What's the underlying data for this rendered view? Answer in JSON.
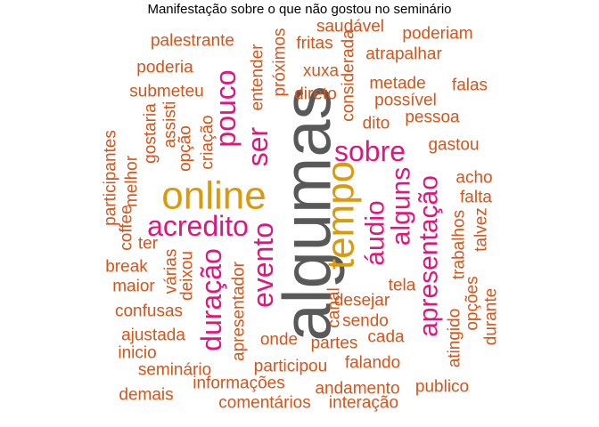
{
  "chart_data": {
    "type": "wordcloud",
    "title": "Manifestação sobre o que não gostou no seminário",
    "colors": {
      "top": "#595959",
      "second": "#D99A0B",
      "third": "#E0167E",
      "rest": "#D5541A"
    },
    "words": [
      {
        "text": "algumas",
        "freq": 10,
        "color": "#595959",
        "rot": -90
      },
      {
        "text": "tempo",
        "freq": 6,
        "color": "#D99A0B",
        "rot": -90
      },
      {
        "text": "online",
        "freq": 6,
        "color": "#D99A0B",
        "rot": 0
      },
      {
        "text": "acredito",
        "freq": 4,
        "color": "#E0167E",
        "rot": 0
      },
      {
        "text": "sobre",
        "freq": 4,
        "color": "#E0167E",
        "rot": 0
      },
      {
        "text": "apresentação",
        "freq": 4,
        "color": "#E0167E",
        "rot": -90
      },
      {
        "text": "duração",
        "freq": 4,
        "color": "#E0167E",
        "rot": -90
      },
      {
        "text": "evento",
        "freq": 4,
        "color": "#E0167E",
        "rot": -90
      },
      {
        "text": "áudio",
        "freq": 4,
        "color": "#E0167E",
        "rot": -90
      },
      {
        "text": "alguns",
        "freq": 4,
        "color": "#E0167E",
        "rot": -90
      },
      {
        "text": "ser",
        "freq": 4,
        "color": "#E0167E",
        "rot": -90
      },
      {
        "text": "pouco",
        "freq": 4,
        "color": "#E0167E",
        "rot": -90
      },
      {
        "text": "palestrante",
        "freq": 2,
        "color": "#D5541A",
        "rot": 0
      },
      {
        "text": "saudável",
        "freq": 2,
        "color": "#D5541A",
        "rot": 0
      },
      {
        "text": "fritas",
        "freq": 2,
        "color": "#D5541A",
        "rot": 0
      },
      {
        "text": "poderiam",
        "freq": 2,
        "color": "#D5541A",
        "rot": 0
      },
      {
        "text": "atrapalhar",
        "freq": 2,
        "color": "#D5541A",
        "rot": 0
      },
      {
        "text": "poderia",
        "freq": 2,
        "color": "#D5541A",
        "rot": 0
      },
      {
        "text": "xuxa",
        "freq": 2,
        "color": "#D5541A",
        "rot": 0
      },
      {
        "text": "metade",
        "freq": 2,
        "color": "#D5541A",
        "rot": 0
      },
      {
        "text": "falas",
        "freq": 2,
        "color": "#D5541A",
        "rot": 0
      },
      {
        "text": "submeteu",
        "freq": 2,
        "color": "#D5541A",
        "rot": 0
      },
      {
        "text": "direto",
        "freq": 2,
        "color": "#D5541A",
        "rot": 0
      },
      {
        "text": "possível",
        "freq": 2,
        "color": "#D5541A",
        "rot": 0
      },
      {
        "text": "pessoa",
        "freq": 2,
        "color": "#D5541A",
        "rot": 0
      },
      {
        "text": "dito",
        "freq": 2,
        "color": "#D5541A",
        "rot": 0
      },
      {
        "text": "gastou",
        "freq": 2,
        "color": "#D5541A",
        "rot": 0
      },
      {
        "text": "acho",
        "freq": 2,
        "color": "#D5541A",
        "rot": 0
      },
      {
        "text": "falta",
        "freq": 2,
        "color": "#D5541A",
        "rot": 0
      },
      {
        "text": "ter",
        "freq": 2,
        "color": "#D5541A",
        "rot": 0
      },
      {
        "text": "break",
        "freq": 2,
        "color": "#D5541A",
        "rot": 0
      },
      {
        "text": "maior",
        "freq": 2,
        "color": "#D5541A",
        "rot": 0
      },
      {
        "text": "tela",
        "freq": 2,
        "color": "#D5541A",
        "rot": 0
      },
      {
        "text": "desejar",
        "freq": 2,
        "color": "#D5541A",
        "rot": 0
      },
      {
        "text": "confusas",
        "freq": 2,
        "color": "#D5541A",
        "rot": 0
      },
      {
        "text": "sendo",
        "freq": 2,
        "color": "#D5541A",
        "rot": 0
      },
      {
        "text": "onde",
        "freq": 2,
        "color": "#D5541A",
        "rot": 0
      },
      {
        "text": "ajustada",
        "freq": 2,
        "color": "#D5541A",
        "rot": 0
      },
      {
        "text": "partes",
        "freq": 2,
        "color": "#D5541A",
        "rot": 0
      },
      {
        "text": "cada",
        "freq": 2,
        "color": "#D5541A",
        "rot": 0
      },
      {
        "text": "inicio",
        "freq": 2,
        "color": "#D5541A",
        "rot": 0
      },
      {
        "text": "seminário",
        "freq": 2,
        "color": "#D5541A",
        "rot": 0
      },
      {
        "text": "participou",
        "freq": 2,
        "color": "#D5541A",
        "rot": 0
      },
      {
        "text": "falando",
        "freq": 2,
        "color": "#D5541A",
        "rot": 0
      },
      {
        "text": "informações",
        "freq": 2,
        "color": "#D5541A",
        "rot": 0
      },
      {
        "text": "demais",
        "freq": 2,
        "color": "#D5541A",
        "rot": 0
      },
      {
        "text": "andamento",
        "freq": 2,
        "color": "#D5541A",
        "rot": 0
      },
      {
        "text": "publico",
        "freq": 2,
        "color": "#D5541A",
        "rot": 0
      },
      {
        "text": "comentários",
        "freq": 2,
        "color": "#D5541A",
        "rot": 0
      },
      {
        "text": "interação",
        "freq": 2,
        "color": "#D5541A",
        "rot": 0
      },
      {
        "text": "entender",
        "freq": 2,
        "color": "#D5541A",
        "rot": -90
      },
      {
        "text": "próximos",
        "freq": 2,
        "color": "#D5541A",
        "rot": -90
      },
      {
        "text": "considerada",
        "freq": 2,
        "color": "#D5541A",
        "rot": -90
      },
      {
        "text": "participantes",
        "freq": 2,
        "color": "#D5541A",
        "rot": -90
      },
      {
        "text": "gostaria",
        "freq": 2,
        "color": "#D5541A",
        "rot": -90
      },
      {
        "text": "assisti",
        "freq": 2,
        "color": "#D5541A",
        "rot": -90
      },
      {
        "text": "opção",
        "freq": 2,
        "color": "#D5541A",
        "rot": -90
      },
      {
        "text": "criação",
        "freq": 2,
        "color": "#D5541A",
        "rot": -90
      },
      {
        "text": "melhor",
        "freq": 2,
        "color": "#D5541A",
        "rot": -90
      },
      {
        "text": "coffee",
        "freq": 2,
        "color": "#D5541A",
        "rot": -90
      },
      {
        "text": "trabalhos",
        "freq": 2,
        "color": "#D5541A",
        "rot": -90
      },
      {
        "text": "talvez",
        "freq": 2,
        "color": "#D5541A",
        "rot": -90
      },
      {
        "text": "várias",
        "freq": 2,
        "color": "#D5541A",
        "rot": -90
      },
      {
        "text": "deixou",
        "freq": 2,
        "color": "#D5541A",
        "rot": -90
      },
      {
        "text": "apresentador",
        "freq": 2,
        "color": "#D5541A",
        "rot": -90
      },
      {
        "text": "canal",
        "freq": 2,
        "color": "#D5541A",
        "rot": -90
      },
      {
        "text": "opções",
        "freq": 2,
        "color": "#D5541A",
        "rot": -90
      },
      {
        "text": "atingido",
        "freq": 2,
        "color": "#D5541A",
        "rot": -90
      },
      {
        "text": "durante",
        "freq": 2,
        "color": "#D5541A",
        "rot": -90
      }
    ]
  }
}
